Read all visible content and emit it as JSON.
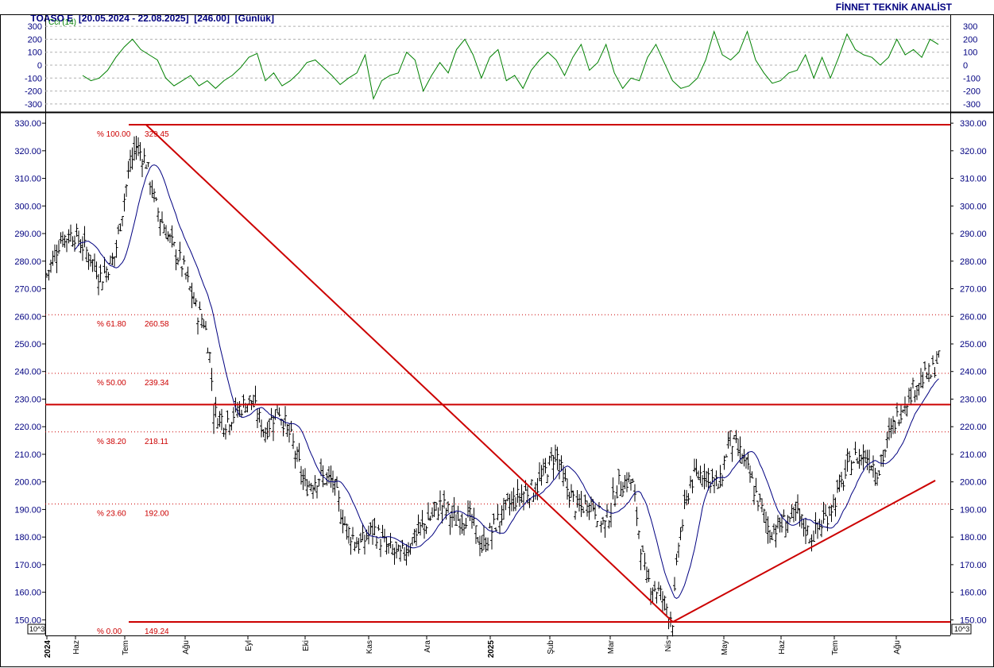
{
  "header": {
    "ticker": "TOASO E",
    "range": "[20.05.2024 - 22.08.2025]",
    "last": "[246.00]",
    "period": "[Günlük]",
    "brand": "FİNNET TEKNİK ANALİST"
  },
  "colors": {
    "axis_text": "#000080",
    "cci_line": "#008000",
    "ma_line": "#000080",
    "fib_text": "#cc0000",
    "trendline": "#cc0000",
    "grid": "#cc0000"
  },
  "chart_data": [
    {
      "type": "line",
      "title": "Cci (14)",
      "y_ticks": [
        "300",
        "200",
        "100",
        "0",
        "-100",
        "-200",
        "-300"
      ],
      "ylim": [
        -300,
        300
      ],
      "series": [
        {
          "values": [
            -80,
            -120,
            -100,
            -40,
            60,
            140,
            200,
            120,
            80,
            40,
            -100,
            -160,
            -120,
            -80,
            -160,
            -120,
            -180,
            -120,
            -80,
            -20,
            60,
            90,
            -120,
            -60,
            -160,
            -120,
            -60,
            20,
            40,
            -20,
            -80,
            -150,
            -100,
            -60,
            80,
            -260,
            -120,
            -80,
            -60,
            100,
            40,
            -200,
            -80,
            20,
            -60,
            120,
            200,
            80,
            -100,
            60,
            120,
            -120,
            -80,
            -180,
            -40,
            40,
            100,
            40,
            -80,
            60,
            160,
            -40,
            20,
            160,
            -60,
            -180,
            -100,
            -120,
            60,
            160,
            20,
            -120,
            -180,
            -160,
            -100,
            40,
            260,
            80,
            40,
            100,
            260,
            40,
            -60,
            -140,
            -120,
            -60,
            -40,
            80,
            -100,
            60,
            -100,
            60,
            240,
            120,
            80,
            60,
            0,
            60,
            200,
            80,
            120,
            60,
            200,
            160
          ],
          "x_start": "2024-06-03",
          "x_end": "2025-08-22"
        }
      ]
    },
    {
      "type": "bar",
      "title": "",
      "note": "OHLC price bars with moving average, Fibonacci retracement and trendlines",
      "y_ticks": [
        "330.00",
        "320.00",
        "310.00",
        "300.00",
        "290.00",
        "280.00",
        "270.00",
        "260.00",
        "250.00",
        "240.00",
        "230.00",
        "220.00",
        "210.00",
        "200.00",
        "190.00",
        "180.00",
        "170.00",
        "160.00",
        "150.00"
      ],
      "ylim": [
        148,
        331
      ],
      "x_ticks": [
        "2024",
        "Haz",
        "Tem",
        "Ağu",
        "Eyl",
        "Eki",
        "Kas",
        "Ara",
        "2025",
        "Şub",
        "Mar",
        "Nis",
        "May",
        "Haz",
        "Tem",
        "Ağu"
      ],
      "scale_label": "10^3",
      "fib_levels": [
        {
          "pct": "% 100.00",
          "value": "329.45",
          "y": 329.45
        },
        {
          "pct": "% 61.80",
          "value": "260.58",
          "y": 260.58
        },
        {
          "pct": "% 50.00",
          "value": "239.34",
          "y": 239.34
        },
        {
          "pct": "% 38.20",
          "value": "218.11",
          "y": 218.11
        },
        {
          "pct": "% 23.60",
          "value": "192.00",
          "y": 192.0
        },
        {
          "pct": "% 0.00",
          "value": "149.24",
          "y": 149.24
        }
      ],
      "horizontal_lines": [
        329.45,
        228.0,
        149.24
      ],
      "trendlines": [
        {
          "from": [
            "2024-07-10",
            329.45
          ],
          "to": [
            "2025-04-07",
            149.24
          ]
        },
        {
          "from": [
            "2025-04-07",
            149.24
          ],
          "to": [
            "2025-08-20",
            200.5
          ]
        }
      ],
      "close_anchors": [
        [
          "2024-05-20",
          275
        ],
        [
          "2024-05-27",
          288
        ],
        [
          "2024-06-03",
          290
        ],
        [
          "2024-06-10",
          283
        ],
        [
          "2024-06-17",
          274
        ],
        [
          "2024-06-24",
          282
        ],
        [
          "2024-07-01",
          312
        ],
        [
          "2024-07-05",
          322
        ],
        [
          "2024-07-10",
          316
        ],
        [
          "2024-07-15",
          300
        ],
        [
          "2024-07-22",
          288
        ],
        [
          "2024-07-29",
          278
        ],
        [
          "2024-08-05",
          262
        ],
        [
          "2024-08-09",
          258
        ],
        [
          "2024-08-12",
          245
        ],
        [
          "2024-08-14",
          225
        ],
        [
          "2024-08-20",
          222
        ],
        [
          "2024-08-26",
          226
        ],
        [
          "2024-09-02",
          230
        ],
        [
          "2024-09-09",
          218
        ],
        [
          "2024-09-16",
          227
        ],
        [
          "2024-09-23",
          215
        ],
        [
          "2024-09-30",
          198
        ],
        [
          "2024-10-07",
          202
        ],
        [
          "2024-10-14",
          200
        ],
        [
          "2024-10-21",
          183
        ],
        [
          "2024-10-28",
          177
        ],
        [
          "2024-11-04",
          183
        ],
        [
          "2024-11-11",
          176
        ],
        [
          "2024-11-18",
          173
        ],
        [
          "2024-11-25",
          180
        ],
        [
          "2024-12-02",
          186
        ],
        [
          "2024-12-09",
          192
        ],
        [
          "2024-12-16",
          186
        ],
        [
          "2024-12-23",
          188
        ],
        [
          "2024-12-30",
          176
        ],
        [
          "2025-01-06",
          185
        ],
        [
          "2025-01-13",
          192
        ],
        [
          "2025-01-20",
          196
        ],
        [
          "2025-01-27",
          198
        ],
        [
          "2025-02-03",
          207
        ],
        [
          "2025-02-06",
          211
        ],
        [
          "2025-02-10",
          200
        ],
        [
          "2025-02-17",
          190
        ],
        [
          "2025-02-24",
          193
        ],
        [
          "2025-03-03",
          184
        ],
        [
          "2025-03-10",
          199
        ],
        [
          "2025-03-17",
          201
        ],
        [
          "2025-03-20",
          185
        ],
        [
          "2025-03-24",
          165
        ],
        [
          "2025-03-31",
          160
        ],
        [
          "2025-04-07",
          150
        ],
        [
          "2025-04-10",
          178
        ],
        [
          "2025-04-16",
          200
        ],
        [
          "2025-04-23",
          204
        ],
        [
          "2025-05-01",
          198
        ],
        [
          "2025-05-06",
          216
        ],
        [
          "2025-05-13",
          209
        ],
        [
          "2025-05-20",
          195
        ],
        [
          "2025-05-27",
          182
        ],
        [
          "2025-06-03",
          185
        ],
        [
          "2025-06-10",
          188
        ],
        [
          "2025-06-17",
          180
        ],
        [
          "2025-06-24",
          186
        ],
        [
          "2025-07-01",
          196
        ],
        [
          "2025-07-08",
          208
        ],
        [
          "2025-07-15",
          210
        ],
        [
          "2025-07-22",
          204
        ],
        [
          "2025-07-29",
          220
        ],
        [
          "2025-08-05",
          230
        ],
        [
          "2025-08-12",
          237
        ],
        [
          "2025-08-18",
          239
        ],
        [
          "2025-08-22",
          246
        ]
      ]
    }
  ]
}
